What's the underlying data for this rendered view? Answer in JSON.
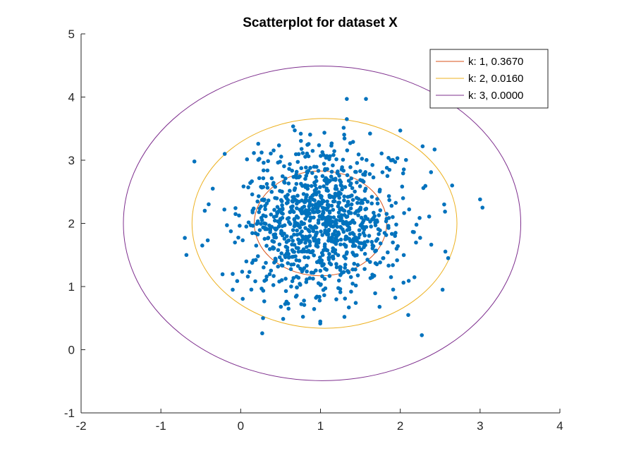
{
  "chart_data": {
    "type": "scatter",
    "title": "Scatterplot for dataset X",
    "xlabel": "",
    "ylabel": "",
    "xlim": [
      -2,
      4
    ],
    "ylim": [
      -1,
      5
    ],
    "xticks": [
      "-2",
      "-1",
      "0",
      "1",
      "2",
      "3",
      "4"
    ],
    "yticks": [
      "-1",
      "0",
      "1",
      "2",
      "3",
      "4",
      "5"
    ],
    "grid": false,
    "legend_position": "top-right",
    "point_color": "#0072BD",
    "center": [
      1.02,
      2.0
    ],
    "scatter_summary": {
      "n_points_approx": 1000,
      "mean": [
        1.02,
        2.0
      ],
      "std": [
        0.5,
        0.6
      ],
      "seed": 7
    },
    "points_outer": [
      [
        -0.58,
        2.98
      ],
      [
        -0.7,
        1.77
      ],
      [
        -0.68,
        1.5
      ],
      [
        -0.2,
        3.1
      ],
      [
        3.0,
        2.38
      ],
      [
        3.03,
        2.25
      ],
      [
        1.33,
        3.97
      ],
      [
        1.57,
        3.97
      ],
      [
        1.33,
        3.65
      ],
      [
        0.27,
        0.26
      ],
      [
        0.28,
        0.5
      ],
      [
        2.27,
        0.23
      ],
      [
        2.53,
        0.95
      ],
      [
        2.43,
        3.17
      ],
      [
        2.28,
        3.22
      ],
      [
        2.0,
        3.47
      ],
      [
        2.65,
        2.6
      ],
      [
        -0.1,
        1.2
      ],
      [
        0.22,
        3.26
      ],
      [
        2.1,
        0.55
      ],
      [
        0.6,
        0.65
      ],
      [
        1.3,
        0.52
      ],
      [
        2.6,
        1.45
      ],
      [
        -0.35,
        2.55
      ],
      [
        -0.45,
        2.2
      ],
      [
        2.55,
        2.3
      ],
      [
        -0.1,
        0.95
      ],
      [
        1.9,
        3.0
      ]
    ],
    "series": [
      {
        "name": "k: 1, 0.3670",
        "type": "circle",
        "center": [
          1.0,
          2.0
        ],
        "radius": 0.83,
        "color": "#D95319"
      },
      {
        "name": "k: 2, 0.0160",
        "type": "circle",
        "center": [
          1.05,
          2.0
        ],
        "radius": 1.66,
        "color": "#EDB120"
      },
      {
        "name": "k: 3, 0.0000",
        "type": "circle",
        "center": [
          1.02,
          2.0
        ],
        "radius": 2.49,
        "color": "#7E2F8E"
      }
    ]
  }
}
